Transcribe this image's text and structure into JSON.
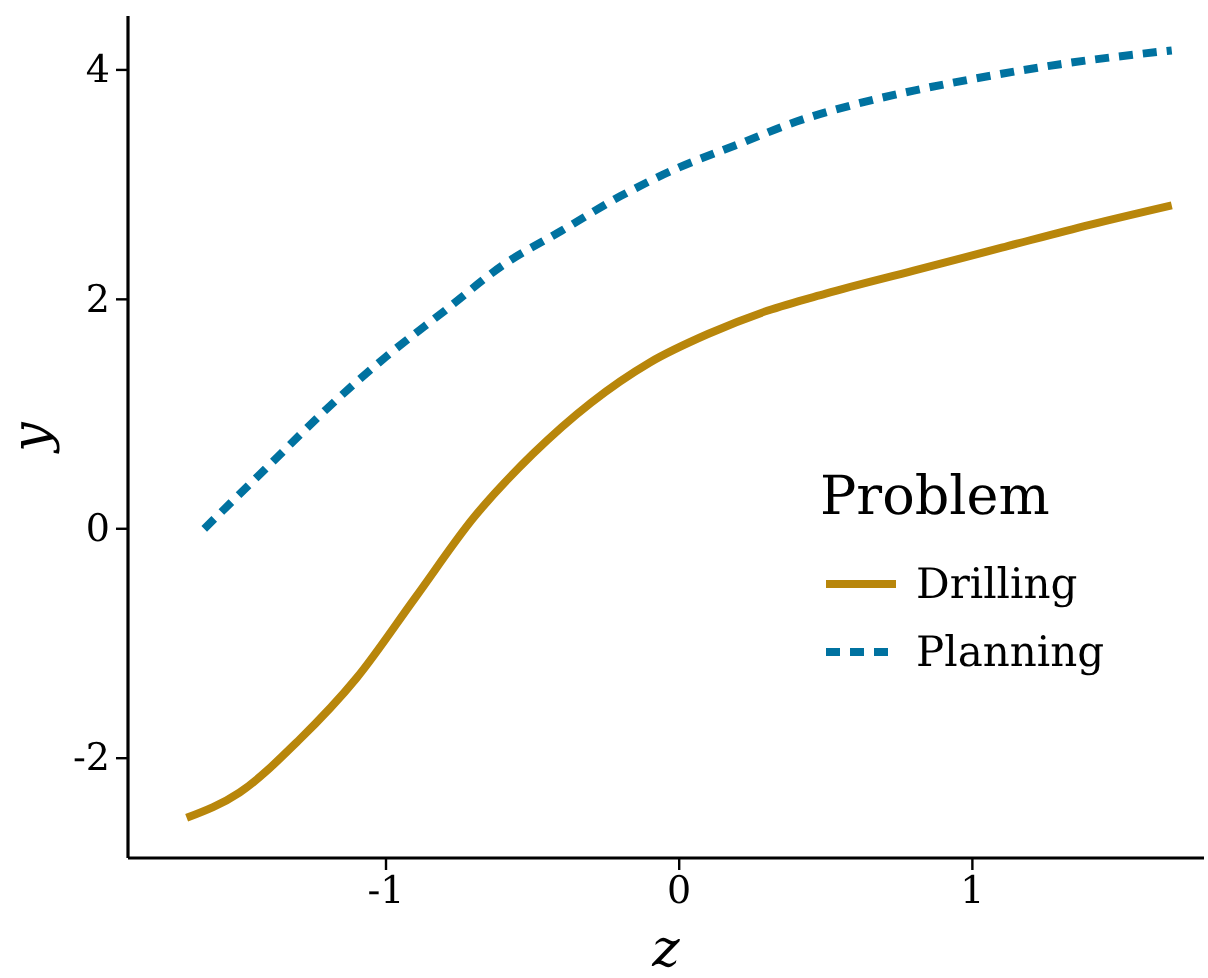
{
  "chart_data": {
    "type": "line",
    "xlabel": "z",
    "ylabel": "y",
    "legend_title": "Problem",
    "legend": "right",
    "grid": false,
    "xlim": [
      -1.88,
      1.79
    ],
    "ylim": [
      -2.87,
      4.47
    ],
    "xticks": [
      -1,
      0,
      1
    ],
    "yticks": [
      -2,
      0,
      2,
      4
    ],
    "series": [
      {
        "name": "Drilling",
        "color": "#b8860b",
        "line_style": "solid",
        "x": [
          -1.68,
          -1.5,
          -1.3,
          -1.1,
          -0.9,
          -0.7,
          -0.5,
          -0.3,
          -0.1,
          0.1,
          0.3,
          0.5,
          0.8,
          1.1,
          1.4,
          1.68
        ],
        "values": [
          -2.52,
          -2.3,
          -1.85,
          -1.3,
          -0.6,
          0.1,
          0.65,
          1.1,
          1.45,
          1.7,
          1.9,
          2.05,
          2.25,
          2.45,
          2.65,
          2.82
        ]
      },
      {
        "name": "Planning",
        "color": "#0072a0",
        "line_style": "dashed",
        "x": [
          -1.62,
          -1.4,
          -1.2,
          -1.0,
          -0.8,
          -0.6,
          -0.4,
          -0.2,
          0,
          0.2,
          0.4,
          0.6,
          0.8,
          1.0,
          1.3,
          1.68
        ],
        "values": [
          0,
          0.55,
          1.05,
          1.5,
          1.9,
          2.3,
          2.6,
          2.9,
          3.15,
          3.35,
          3.55,
          3.7,
          3.82,
          3.92,
          4.05,
          4.17
        ]
      }
    ]
  }
}
